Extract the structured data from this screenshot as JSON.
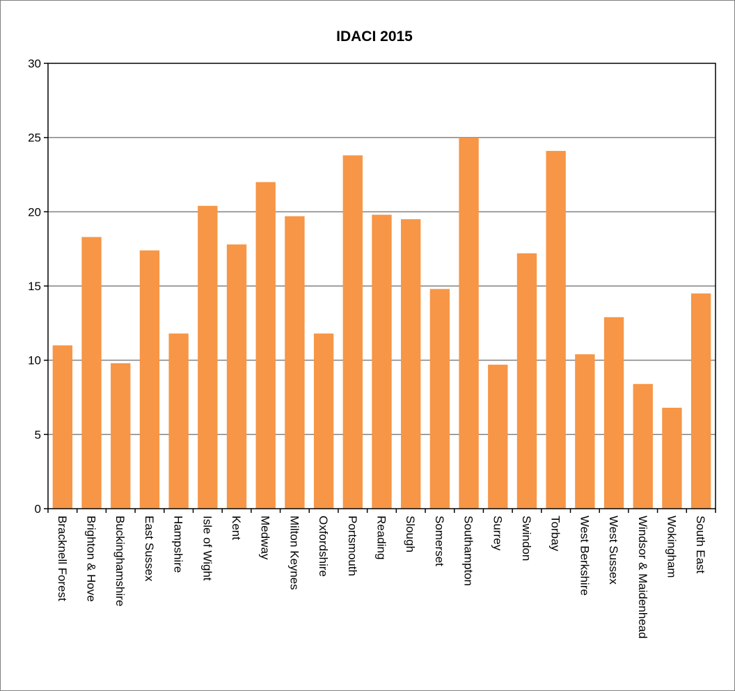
{
  "chart_data": {
    "type": "bar",
    "title": "IDACI 2015",
    "xlabel": "",
    "ylabel": "",
    "ylim": [
      0,
      30
    ],
    "yticks": [
      0,
      5,
      10,
      15,
      20,
      25,
      30
    ],
    "grid": true,
    "legend": "none",
    "bar_color": "#F79646",
    "categories": [
      "Bracknell Forest",
      "Brighton & Hove",
      "Buckinghamshire",
      "East Sussex",
      "Hampshire",
      "Isle of Wight",
      "Kent",
      "Medway",
      "Milton Keynes",
      "Oxfordshire",
      "Portsmouth",
      "Reading",
      "Slough",
      "Somerset",
      "Southampton",
      "Surrey",
      "Swindon",
      "Torbay",
      "West Berkshire",
      "West Sussex",
      "Windsor & Maidenhead",
      "Wokingham",
      "South East"
    ],
    "values": [
      11.0,
      18.3,
      9.8,
      17.4,
      11.8,
      20.4,
      17.8,
      22.0,
      19.7,
      11.8,
      23.8,
      19.8,
      19.5,
      14.8,
      25.0,
      9.7,
      17.2,
      24.1,
      10.4,
      12.9,
      8.4,
      6.8,
      14.5
    ]
  }
}
